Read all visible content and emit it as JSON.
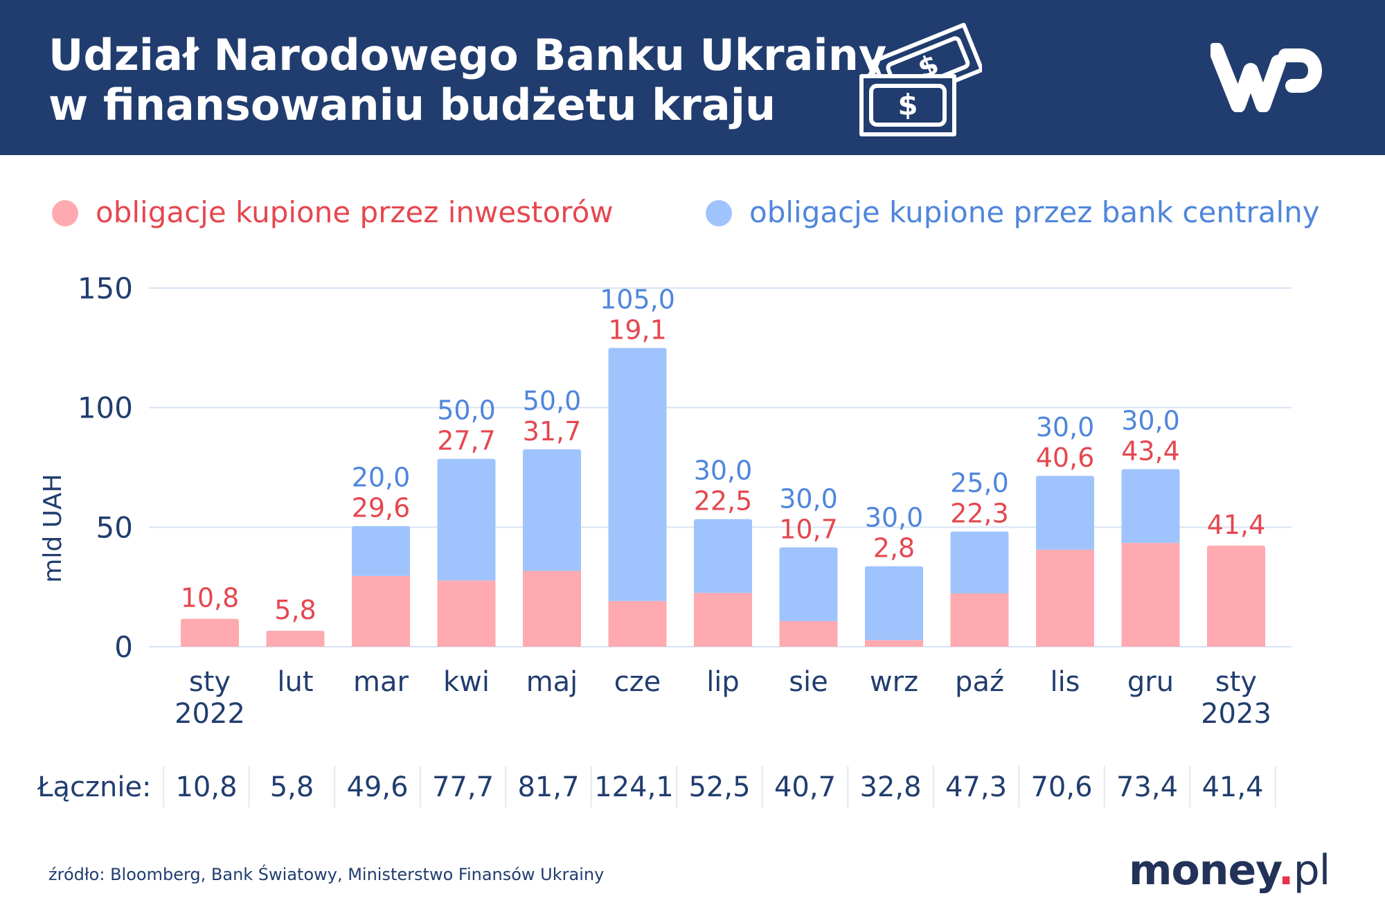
{
  "header": {
    "title_line1": "Udział Narodowego Banku Ukrainy",
    "title_line2": "w finansowaniu budżetu kraju"
  },
  "icons": {
    "money": "banknotes-icon",
    "logo": "wp-logo"
  },
  "colors": {
    "header_bg": "#213d6f",
    "investors": "#ffaab0",
    "central_bank": "#9fc4fd",
    "investors_text": "#e5474f",
    "central_bank_text": "#4f86db",
    "axis_text": "#213d6f",
    "grid": "#d7e3f3"
  },
  "chart_data": {
    "type": "bar",
    "stacked": true,
    "categories": [
      "sty 2022",
      "lut",
      "mar",
      "kwi",
      "maj",
      "cze",
      "lip",
      "sie",
      "wrz",
      "paź",
      "lis",
      "gru",
      "sty 2023"
    ],
    "category_lines": [
      [
        "sty",
        "2022"
      ],
      [
        "lut"
      ],
      [
        "mar"
      ],
      [
        "kwi"
      ],
      [
        "maj"
      ],
      [
        "cze"
      ],
      [
        "lip"
      ],
      [
        "sie"
      ],
      [
        "wrz"
      ],
      [
        "paź"
      ],
      [
        "lis"
      ],
      [
        "gru"
      ],
      [
        "sty",
        "2023"
      ]
    ],
    "series": [
      {
        "name": "obligacje kupione przez inwestorów",
        "values": [
          10.8,
          5.8,
          29.6,
          27.7,
          31.7,
          19.1,
          22.5,
          10.7,
          2.8,
          22.3,
          40.6,
          43.4,
          41.4
        ],
        "labels": [
          "10,8",
          "5,8",
          "29,6",
          "27,7",
          "31,7",
          "19,1",
          "22,5",
          "10,7",
          "2,8",
          "22,3",
          "40,6",
          "43,4",
          "41,4"
        ]
      },
      {
        "name": "obligacje kupione przez bank centralny",
        "values": [
          0,
          0,
          20.0,
          50.0,
          50.0,
          105.0,
          30.0,
          30.0,
          30.0,
          25.0,
          30.0,
          30.0,
          0
        ],
        "labels": [
          "",
          "",
          "20,0",
          "50,0",
          "50,0",
          "105,0",
          "30,0",
          "30,0",
          "30,0",
          "25,0",
          "30,0",
          "30,0",
          ""
        ]
      }
    ],
    "ylabel": "mld UAH",
    "ylim": [
      0,
      150
    ],
    "yticks": [
      0,
      50,
      100,
      150
    ],
    "grid": true,
    "legend_position": "top",
    "totals_label": "Łącznie:",
    "totals": [
      "10,8",
      "5,8",
      "49,6",
      "77,7",
      "81,7",
      "124,1",
      "52,5",
      "40,7",
      "32,8",
      "47,3",
      "70,6",
      "73,4",
      "41,4"
    ]
  },
  "footer": {
    "source": "źródło: Bloomberg, Bank Światowy, Ministerstwo Finansów Ukrainy",
    "brand_main": "money",
    "brand_dot": ".",
    "brand_suffix": "pl"
  }
}
